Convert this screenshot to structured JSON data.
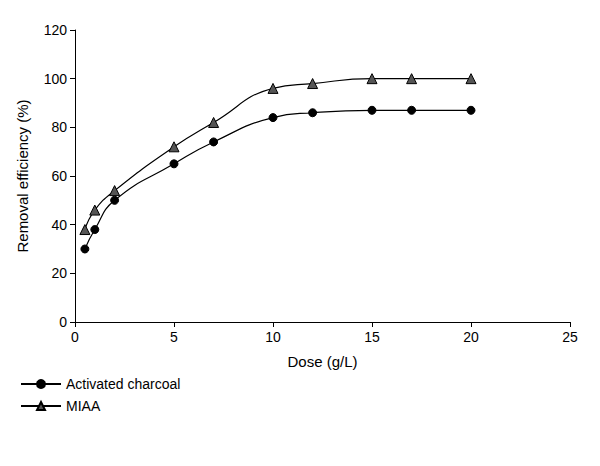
{
  "chart_data": {
    "type": "line",
    "x_label": "Dose (g/L)",
    "y_label": "Removal efficiency (%)",
    "xlim": [
      0,
      25
    ],
    "xticks": [
      0,
      5,
      10,
      15,
      20,
      25
    ],
    "ylim": [
      0,
      120
    ],
    "yticks": [
      0,
      20,
      40,
      60,
      80,
      100,
      120
    ],
    "grid": false,
    "legend": "bottom-left",
    "series": [
      {
        "name": "Activated charcoal",
        "color": "#000000",
        "marker": "circle",
        "line_style": "solid",
        "x": [
          0.5,
          1,
          2,
          5,
          7,
          10,
          12,
          15,
          17,
          20
        ],
        "values": [
          30,
          38,
          50,
          65,
          74,
          84,
          86,
          87,
          87,
          87
        ]
      },
      {
        "name": "MIAA",
        "color": "#000000",
        "marker": "triangle",
        "line_style": "solid",
        "x": [
          0.5,
          1,
          2,
          5,
          7,
          10,
          12,
          15,
          17,
          20
        ],
        "values": [
          38,
          46,
          54,
          72,
          82,
          96,
          98,
          100,
          100,
          100
        ]
      }
    ]
  }
}
